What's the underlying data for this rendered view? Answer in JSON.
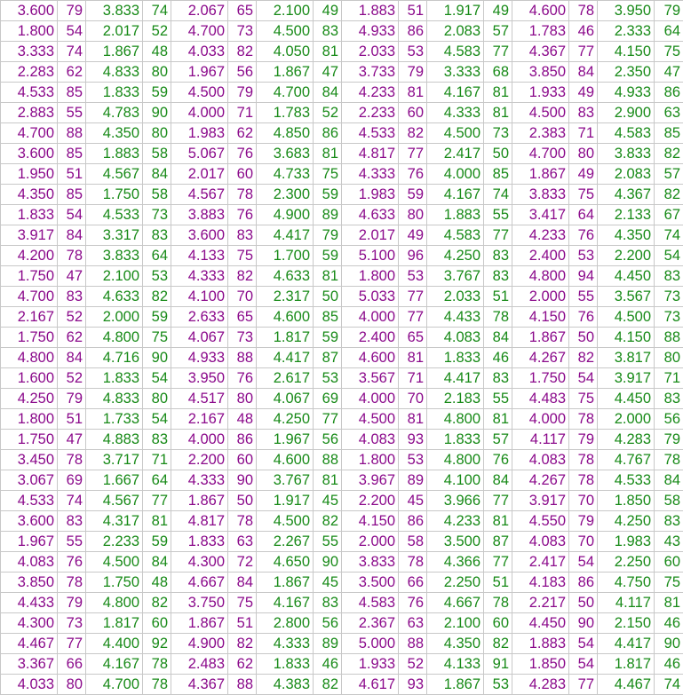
{
  "table": {
    "column_colors": [
      "purple",
      "purple",
      "green",
      "green",
      "purple",
      "purple",
      "green",
      "green",
      "purple",
      "purple",
      "green",
      "green",
      "purple",
      "purple",
      "green",
      "green"
    ],
    "colors": {
      "purple": "#8b0a8b",
      "green": "#178a17",
      "grid": "#c8c8c8"
    },
    "rows": [
      [
        "3.600",
        "79",
        "3.833",
        "74",
        "2.067",
        "65",
        "2.100",
        "49",
        "1.883",
        "51",
        "1.917",
        "49",
        "4.600",
        "78",
        "3.950",
        "79"
      ],
      [
        "1.800",
        "54",
        "2.017",
        "52",
        "4.700",
        "73",
        "4.500",
        "83",
        "4.933",
        "86",
        "2.083",
        "57",
        "1.783",
        "46",
        "2.333",
        "64"
      ],
      [
        "3.333",
        "74",
        "1.867",
        "48",
        "4.033",
        "82",
        "4.050",
        "81",
        "2.033",
        "53",
        "4.583",
        "77",
        "4.367",
        "77",
        "4.150",
        "75"
      ],
      [
        "2.283",
        "62",
        "4.833",
        "80",
        "1.967",
        "56",
        "1.867",
        "47",
        "3.733",
        "79",
        "3.333",
        "68",
        "3.850",
        "84",
        "2.350",
        "47"
      ],
      [
        "4.533",
        "85",
        "1.833",
        "59",
        "4.500",
        "79",
        "4.700",
        "84",
        "4.233",
        "81",
        "4.167",
        "81",
        "1.933",
        "49",
        "4.933",
        "86"
      ],
      [
        "2.883",
        "55",
        "4.783",
        "90",
        "4.000",
        "71",
        "1.783",
        "52",
        "2.233",
        "60",
        "4.333",
        "81",
        "4.500",
        "83",
        "2.900",
        "63"
      ],
      [
        "4.700",
        "88",
        "4.350",
        "80",
        "1.983",
        "62",
        "4.850",
        "86",
        "4.533",
        "82",
        "4.500",
        "73",
        "2.383",
        "71",
        "4.583",
        "85"
      ],
      [
        "3.600",
        "85",
        "1.883",
        "58",
        "5.067",
        "76",
        "3.683",
        "81",
        "4.817",
        "77",
        "2.417",
        "50",
        "4.700",
        "80",
        "3.833",
        "82"
      ],
      [
        "1.950",
        "51",
        "4.567",
        "84",
        "2.017",
        "60",
        "4.733",
        "75",
        "4.333",
        "76",
        "4.000",
        "85",
        "1.867",
        "49",
        "2.083",
        "57"
      ],
      [
        "4.350",
        "85",
        "1.750",
        "58",
        "4.567",
        "78",
        "2.300",
        "59",
        "1.983",
        "59",
        "4.167",
        "74",
        "3.833",
        "75",
        "4.367",
        "82"
      ],
      [
        "1.833",
        "54",
        "4.533",
        "73",
        "3.883",
        "76",
        "4.900",
        "89",
        "4.633",
        "80",
        "1.883",
        "55",
        "3.417",
        "64",
        "2.133",
        "67"
      ],
      [
        "3.917",
        "84",
        "3.317",
        "83",
        "3.600",
        "83",
        "4.417",
        "79",
        "2.017",
        "49",
        "4.583",
        "77",
        "4.233",
        "76",
        "4.350",
        "74"
      ],
      [
        "4.200",
        "78",
        "3.833",
        "64",
        "4.133",
        "75",
        "1.700",
        "59",
        "5.100",
        "96",
        "4.250",
        "83",
        "2.400",
        "53",
        "2.200",
        "54"
      ],
      [
        "1.750",
        "47",
        "2.100",
        "53",
        "4.333",
        "82",
        "4.633",
        "81",
        "1.800",
        "53",
        "3.767",
        "83",
        "4.800",
        "94",
        "4.450",
        "83"
      ],
      [
        "4.700",
        "83",
        "4.633",
        "82",
        "4.100",
        "70",
        "2.317",
        "50",
        "5.033",
        "77",
        "2.033",
        "51",
        "2.000",
        "55",
        "3.567",
        "73"
      ],
      [
        "2.167",
        "52",
        "2.000",
        "59",
        "2.633",
        "65",
        "4.600",
        "85",
        "4.000",
        "77",
        "4.433",
        "78",
        "4.150",
        "76",
        "4.500",
        "73"
      ],
      [
        "1.750",
        "62",
        "4.800",
        "75",
        "4.067",
        "73",
        "1.817",
        "59",
        "2.400",
        "65",
        "4.083",
        "84",
        "1.867",
        "50",
        "4.150",
        "88"
      ],
      [
        "4.800",
        "84",
        "4.716",
        "90",
        "4.933",
        "88",
        "4.417",
        "87",
        "4.600",
        "81",
        "1.833",
        "46",
        "4.267",
        "82",
        "3.817",
        "80"
      ],
      [
        "1.600",
        "52",
        "1.833",
        "54",
        "3.950",
        "76",
        "2.617",
        "53",
        "3.567",
        "71",
        "4.417",
        "83",
        "1.750",
        "54",
        "3.917",
        "71"
      ],
      [
        "4.250",
        "79",
        "4.833",
        "80",
        "4.517",
        "80",
        "4.067",
        "69",
        "4.000",
        "70",
        "2.183",
        "55",
        "4.483",
        "75",
        "4.450",
        "83"
      ],
      [
        "1.800",
        "51",
        "1.733",
        "54",
        "2.167",
        "48",
        "4.250",
        "77",
        "4.500",
        "81",
        "4.800",
        "81",
        "4.000",
        "78",
        "2.000",
        "56"
      ],
      [
        "1.750",
        "47",
        "4.883",
        "83",
        "4.000",
        "86",
        "1.967",
        "56",
        "4.083",
        "93",
        "1.833",
        "57",
        "4.117",
        "79",
        "4.283",
        "79"
      ],
      [
        "3.450",
        "78",
        "3.717",
        "71",
        "2.200",
        "60",
        "4.600",
        "88",
        "1.800",
        "53",
        "4.800",
        "76",
        "4.083",
        "78",
        "4.767",
        "78"
      ],
      [
        "3.067",
        "69",
        "1.667",
        "64",
        "4.333",
        "90",
        "3.767",
        "81",
        "3.967",
        "89",
        "4.100",
        "84",
        "4.267",
        "78",
        "4.533",
        "84"
      ],
      [
        "4.533",
        "74",
        "4.567",
        "77",
        "1.867",
        "50",
        "1.917",
        "45",
        "2.200",
        "45",
        "3.966",
        "77",
        "3.917",
        "70",
        "1.850",
        "58"
      ],
      [
        "3.600",
        "83",
        "4.317",
        "81",
        "4.817",
        "78",
        "4.500",
        "82",
        "4.150",
        "86",
        "4.233",
        "81",
        "4.550",
        "79",
        "4.250",
        "83"
      ],
      [
        "1.967",
        "55",
        "2.233",
        "59",
        "1.833",
        "63",
        "2.267",
        "55",
        "2.000",
        "58",
        "3.500",
        "87",
        "4.083",
        "70",
        "1.983",
        "43"
      ],
      [
        "4.083",
        "76",
        "4.500",
        "84",
        "4.300",
        "72",
        "4.650",
        "90",
        "3.833",
        "78",
        "4.366",
        "77",
        "2.417",
        "54",
        "2.250",
        "60"
      ],
      [
        "3.850",
        "78",
        "1.750",
        "48",
        "4.667",
        "84",
        "1.867",
        "45",
        "3.500",
        "66",
        "2.250",
        "51",
        "4.183",
        "86",
        "4.750",
        "75"
      ],
      [
        "4.433",
        "79",
        "4.800",
        "82",
        "3.750",
        "75",
        "4.167",
        "83",
        "4.583",
        "76",
        "4.667",
        "78",
        "2.217",
        "50",
        "4.117",
        "81"
      ],
      [
        "4.300",
        "73",
        "1.817",
        "60",
        "1.867",
        "51",
        "2.800",
        "56",
        "2.367",
        "63",
        "2.100",
        "60",
        "4.450",
        "90",
        "2.150",
        "46"
      ],
      [
        "4.467",
        "77",
        "4.400",
        "92",
        "4.900",
        "82",
        "4.333",
        "89",
        "5.000",
        "88",
        "4.350",
        "82",
        "1.883",
        "54",
        "4.417",
        "90"
      ],
      [
        "3.367",
        "66",
        "4.167",
        "78",
        "2.483",
        "62",
        "1.833",
        "46",
        "1.933",
        "52",
        "4.133",
        "91",
        "1.850",
        "54",
        "1.817",
        "46"
      ],
      [
        "4.033",
        "80",
        "4.700",
        "78",
        "4.367",
        "88",
        "4.383",
        "82",
        "4.617",
        "93",
        "1.867",
        "53",
        "4.283",
        "77",
        "4.467",
        "74"
      ]
    ]
  }
}
